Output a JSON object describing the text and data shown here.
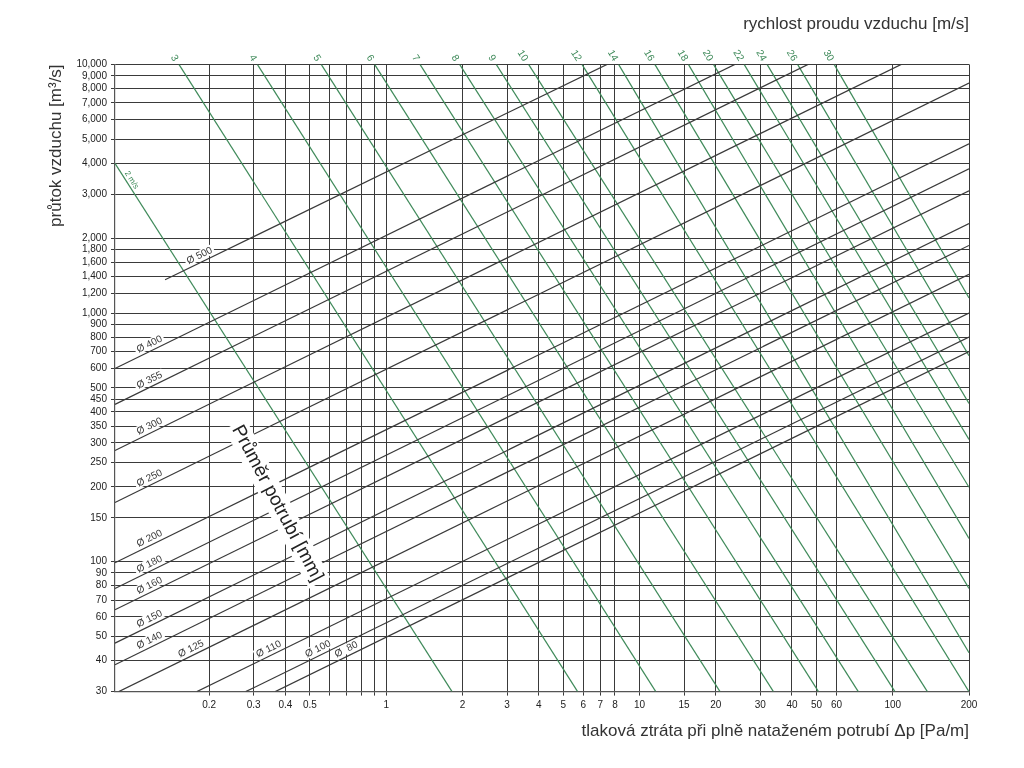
{
  "chart_data": {
    "type": "line",
    "title": "rychlost proudu vzduchu [m/s]",
    "xlabel": "tlaková ztráta při plně nataženém potrubí Δp [Pa/m]",
    "ylabel": "průtok vzduchu [m³/s]",
    "log": "xy",
    "grid": true,
    "marker": "none",
    "line_style": "solid",
    "xlim": [
      0.085,
      200
    ],
    "ylim": [
      30,
      10000
    ],
    "xticks": [
      {
        "value": 0.2,
        "label": "0.2"
      },
      {
        "value": 0.3,
        "label": "0.3"
      },
      {
        "value": 0.4,
        "label": "0.4"
      },
      {
        "value": 0.5,
        "label": "0.5"
      },
      {
        "value": 0.6,
        "label": null
      },
      {
        "value": 0.7,
        "label": null
      },
      {
        "value": 0.8,
        "label": null
      },
      {
        "value": 0.9,
        "label": null
      },
      1,
      2,
      3,
      4,
      5,
      6,
      7,
      8,
      10,
      15,
      20,
      30,
      40,
      50,
      60,
      100,
      200
    ],
    "yticks": [
      30,
      40,
      50,
      60,
      70,
      80,
      90,
      100,
      150,
      200,
      250,
      300,
      350,
      400,
      450,
      500,
      600,
      700,
      800,
      900,
      {
        "value": 1000,
        "label": "1,000"
      },
      {
        "value": 1200,
        "label": "1,200"
      },
      {
        "value": 1400,
        "label": "1,400"
      },
      {
        "value": 1600,
        "label": "1,600"
      },
      {
        "value": 1800,
        "label": "1,800"
      },
      {
        "value": 2000,
        "label": "2,000"
      },
      {
        "value": 3000,
        "label": "3,000"
      },
      {
        "value": 4000,
        "label": "4,000"
      },
      {
        "value": 5000,
        "label": "5,000"
      },
      {
        "value": 6000,
        "label": "6,000"
      },
      {
        "value": 7000,
        "label": "7,000"
      },
      {
        "value": 8000,
        "label": "8,000"
      },
      {
        "value": 9000,
        "label": "9,000"
      },
      {
        "value": 10000,
        "label": "10,000"
      }
    ],
    "annotations": [
      "Průměr potrubí [mm]"
    ],
    "series": [
      {
        "name": "Ø 500",
        "color": "#3a3a3a",
        "x": [
          0.134,
          7.45
        ],
        "values": [
          1360,
          10000
        ]
      },
      {
        "name": "Ø 400",
        "color": "#3a3a3a",
        "x": [
          0.085,
          23.8
        ],
        "values": [
          598,
          10000
        ]
      },
      {
        "name": "Ø 355",
        "color": "#3a3a3a",
        "x": [
          0.085,
          46.3
        ],
        "values": [
          429,
          10000
        ]
      },
      {
        "name": "Ø 300",
        "color": "#3a3a3a",
        "x": [
          0.085,
          108
        ],
        "values": [
          280,
          10000
        ]
      },
      {
        "name": "Ø 250",
        "color": "#3a3a3a",
        "x": [
          0.085,
          200
        ],
        "values": [
          173,
          8410
        ]
      },
      {
        "name": "Ø 200",
        "color": "#3a3a3a",
        "x": [
          0.085,
          200
        ],
        "values": [
          99,
          4790
        ]
      },
      {
        "name": "Ø 180",
        "color": "#3a3a3a",
        "x": [
          0.085,
          200
        ],
        "values": [
          78,
          3800
        ]
      },
      {
        "name": "Ø 160",
        "color": "#3a3a3a",
        "x": [
          0.085,
          200
        ],
        "values": [
          64,
          3100
        ]
      },
      {
        "name": "Ø 150",
        "color": "#3a3a3a",
        "x": [
          0.085,
          200
        ],
        "values": [
          47,
          2290
        ]
      },
      {
        "name": "Ø 140",
        "color": "#3a3a3a",
        "x": [
          0.085,
          200
        ],
        "values": [
          38.5,
          1870
        ]
      },
      {
        "name": "Ø 125",
        "color": "#3a3a3a",
        "x": [
          0.088,
          200
        ],
        "values": [
          30,
          1430
        ]
      },
      {
        "name": "Ø 110",
        "color": "#3a3a3a",
        "x": [
          0.179,
          200
        ],
        "values": [
          30,
          1000
        ]
      },
      {
        "name": "Ø 100",
        "color": "#3a3a3a",
        "x": [
          0.279,
          200
        ],
        "values": [
          30,
          800
        ]
      },
      {
        "name": "Ø  80",
        "color": "#3a3a3a",
        "x": [
          0.365,
          200
        ],
        "values": [
          30,
          700
        ]
      },
      {
        "name": "2 m/s",
        "color": "#3f8a5a",
        "x": [
          0.085,
          1.82
        ],
        "values": [
          4000,
          30
        ]
      },
      {
        "name": "3",
        "color": "#3f8a5a",
        "x": [
          0.152,
          5.7
        ],
        "values": [
          10000,
          30
        ]
      },
      {
        "name": "4",
        "color": "#3f8a5a",
        "x": [
          0.31,
          11.6
        ],
        "values": [
          10000,
          30
        ]
      },
      {
        "name": "5",
        "color": "#3f8a5a",
        "x": [
          0.554,
          20.8
        ],
        "values": [
          10000,
          30
        ]
      },
      {
        "name": "6",
        "color": "#3f8a5a",
        "x": [
          0.9,
          33.8
        ],
        "values": [
          10000,
          30
        ]
      },
      {
        "name": "7",
        "color": "#3f8a5a",
        "x": [
          1.36,
          50.9
        ],
        "values": [
          10000,
          30
        ]
      },
      {
        "name": "8",
        "color": "#3f8a5a",
        "x": [
          1.95,
          73.1
        ],
        "values": [
          10000,
          30
        ]
      },
      {
        "name": "9",
        "color": "#3f8a5a",
        "x": [
          2.72,
          102
        ],
        "values": [
          10000,
          30
        ]
      },
      {
        "name": "10",
        "color": "#3f8a5a",
        "x": [
          3.65,
          137
        ],
        "values": [
          10000,
          30
        ]
      },
      {
        "name": "12",
        "color": "#3f8a5a",
        "x": [
          5.93,
          200
        ],
        "values": [
          10000,
          30
        ]
      },
      {
        "name": "14",
        "color": "#3f8a5a",
        "x": [
          8.27,
          200
        ],
        "values": [
          10000,
          43
        ]
      },
      {
        "name": "16",
        "color": "#3f8a5a",
        "x": [
          11.5,
          200
        ],
        "values": [
          10000,
          78
        ]
      },
      {
        "name": "18",
        "color": "#3f8a5a",
        "x": [
          15.6,
          200
        ],
        "values": [
          10000,
          124
        ]
      },
      {
        "name": "20",
        "color": "#3f8a5a",
        "x": [
          19.6,
          200
        ],
        "values": [
          10000,
          199
        ]
      },
      {
        "name": "22",
        "color": "#3f8a5a",
        "x": [
          25.9,
          200
        ],
        "values": [
          10000,
          310
        ]
      },
      {
        "name": "24",
        "color": "#3f8a5a",
        "x": [
          31.9,
          200
        ],
        "values": [
          10000,
          433
        ]
      },
      {
        "name": "26",
        "color": "#3f8a5a",
        "x": [
          42.1,
          200
        ],
        "values": [
          10000,
          673
        ]
      },
      {
        "name": "30",
        "color": "#3f8a5a",
        "x": [
          58.7,
          200
        ],
        "values": [
          10000,
          1150
        ]
      }
    ]
  }
}
